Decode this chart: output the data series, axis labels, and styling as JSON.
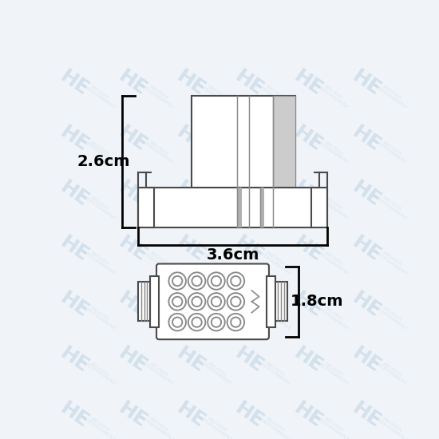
{
  "bg_color": "#f0f4f8",
  "line_color": "#4a4a4a",
  "line_color2": "#888888",
  "light_gray": "#cccccc",
  "mid_gray": "#b0b0b0",
  "dim_color": "#000000",
  "watermark_text": "HE",
  "watermark_sub": "ARCADIA\nENTERTAINMENT",
  "watermark_color": "#b8cfe0",
  "dim_26": "2.6cm",
  "dim_36": "3.6cm",
  "dim_18": "1.8cm"
}
